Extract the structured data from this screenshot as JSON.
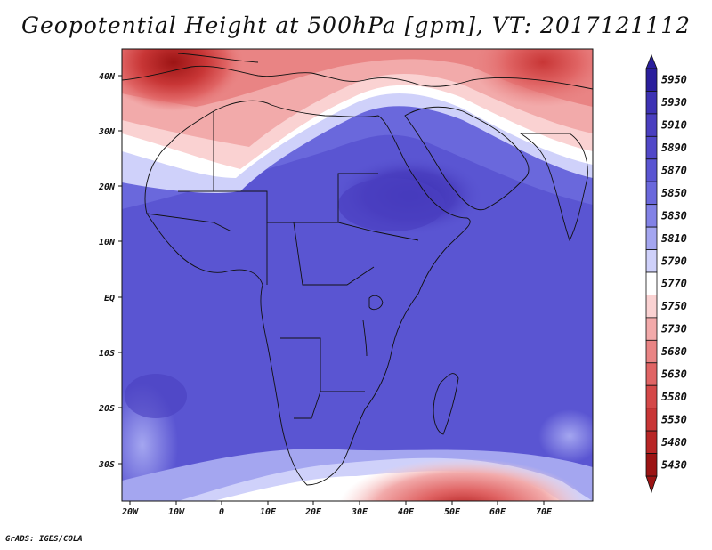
{
  "title": "Geopotential Height at 500hPa [gpm], VT: 2017121112",
  "credit": "GrADS: IGES/COLA",
  "lat_labels": [
    "40N",
    "30N",
    "20N",
    "10N",
    "EQ",
    "10S",
    "20S",
    "30S"
  ],
  "lon_labels": [
    "20W",
    "10W",
    "0",
    "10E",
    "20E",
    "30E",
    "40E",
    "50E",
    "60E",
    "70E"
  ],
  "colorbar": {
    "levels": [
      "5950",
      "5930",
      "5910",
      "5890",
      "5870",
      "5850",
      "5830",
      "5810",
      "5790",
      "5770",
      "5750",
      "5730",
      "5680",
      "5630",
      "5580",
      "5530",
      "5480",
      "5430"
    ],
    "colors": [
      "#2a1e9c",
      "#3d32b4",
      "#4a3fc0",
      "#5148c8",
      "#5a55d2",
      "#6a68dc",
      "#8282e6",
      "#a4a6f0",
      "#cfd1fa",
      "#ffffff",
      "#fad2d2",
      "#f2aaaa",
      "#e98484",
      "#e06464",
      "#d44848",
      "#c83636",
      "#b82626",
      "#9c1414"
    ]
  }
}
